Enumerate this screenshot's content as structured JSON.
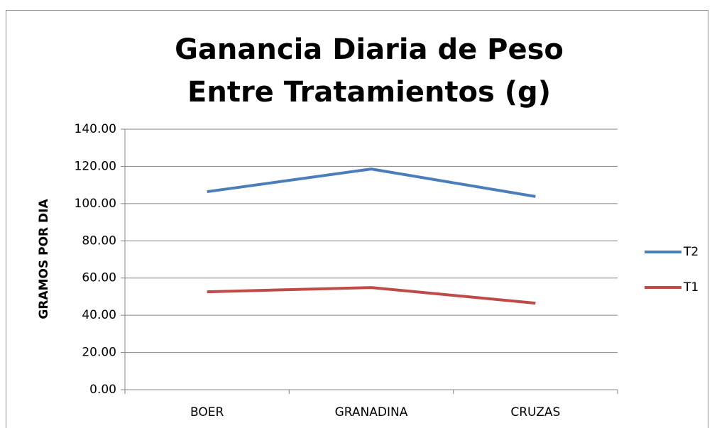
{
  "chart_data": {
    "type": "line",
    "title": "Ganancia Diaria de Peso Entre Tratamientos (g)",
    "y_label": "GRAMOS POR DIA",
    "categories": [
      "BOER",
      "GRANADINA",
      "CRUZAS"
    ],
    "series": [
      {
        "name": "T2",
        "color": "#4a7ebb",
        "values": [
          106.4,
          118.6,
          103.8
        ]
      },
      {
        "name": "T1",
        "color": "#be4b48",
        "values": [
          52.6,
          54.9,
          46.5
        ]
      }
    ],
    "ylim": [
      0,
      140
    ],
    "yticks": [
      {
        "value": 0,
        "label": "0.00"
      },
      {
        "value": 20,
        "label": "20.00"
      },
      {
        "value": 40,
        "label": "40.00"
      },
      {
        "value": 60,
        "label": "60.00"
      },
      {
        "value": 80,
        "label": "80.00"
      },
      {
        "value": 100,
        "label": "100.00"
      },
      {
        "value": 120,
        "label": "120.00"
      },
      {
        "value": 140,
        "label": "140.00"
      }
    ],
    "grid": true,
    "legend": "right"
  }
}
